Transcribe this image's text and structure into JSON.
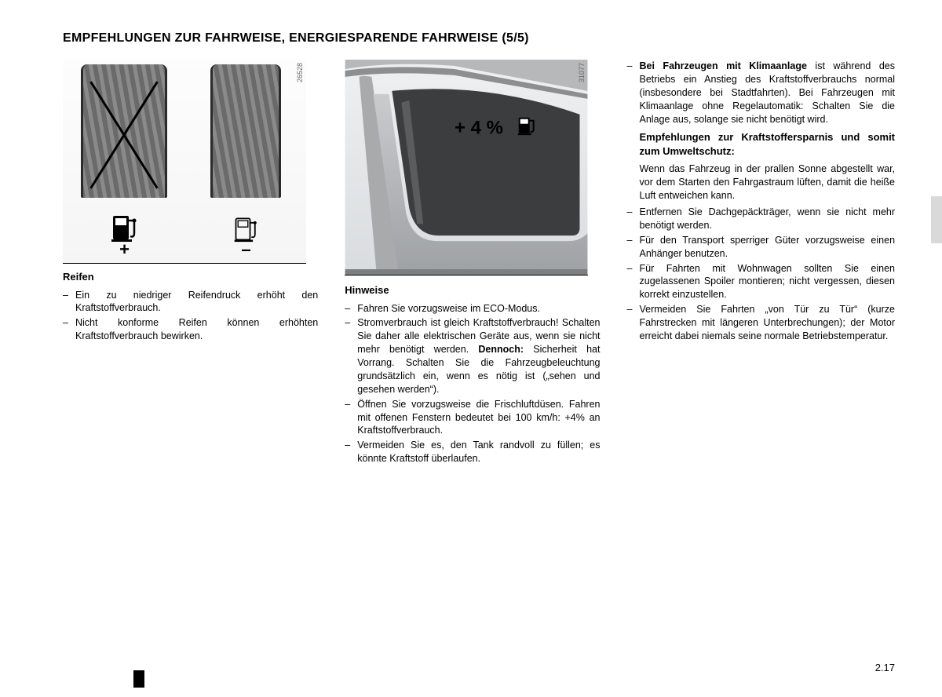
{
  "title_main": "EMPFEHLUNGEN ZUR FAHRWEISE, ENERGIESPARENDE FAHRWEISE ",
  "title_page": "(5/5)",
  "fig1": {
    "code": "26528",
    "plus": "+",
    "minus": "–"
  },
  "fig2": {
    "code": "31077",
    "overlay": "+ 4 %"
  },
  "col1": {
    "head": "Reifen",
    "items": [
      "Ein zu niedriger Reifendruck erhöht den Kraftstoffverbrauch.",
      "Nicht konforme Reifen können erhöhten Kraftstoffverbrauch bewirken."
    ]
  },
  "col2": {
    "head": "Hinweise",
    "items": [
      "Fahren Sie vorzugsweise im ECO-Modus.",
      "Stromverbrauch ist gleich Kraftstoffverbrauch! Schalten Sie daher alle elektrischen Geräte aus, wenn sie nicht mehr benötigt werden. <b>Dennoch:</b> Sicherheit hat Vorrang. Schalten Sie die Fahrzeugbeleuchtung grundsätzlich ein, wenn es nötig ist („sehen und gesehen werden“).",
      "Öffnen Sie vorzugsweise die Frischluftdüsen. Fahren mit offenen Fenstern bedeutet bei 100 km/h: +4% an Kraftstoffverbrauch.",
      "Vermeiden Sie es, den Tank randvoll zu füllen; es könnte Kraftstoff überlaufen."
    ]
  },
  "col3": {
    "intro_label": "Bei Fahrzeugen mit Klimaanlage",
    "intro_text": " ist während des Betriebs ein Anstieg des Kraftstoffverbrauchs normal (insbesondere bei Stadtfahrten). Bei Fahrzeugen mit Klimaanlage ohne Regelautomatik: Schalten Sie die Anlage aus, solange sie nicht benötigt wird.",
    "head2": "Empfehlungen zur Kraftstoffersparnis und somit zum Umweltschutz:",
    "para": "Wenn das Fahrzeug in der prallen Sonne abgestellt war, vor dem Starten den Fahrgastraum lüften, damit die heiße Luft entweichen kann.",
    "items": [
      "Entfernen Sie Dachgepäckträger, wenn sie nicht mehr benötigt werden.",
      "Für den Transport sperriger Güter vorzugsweise einen Anhänger benutzen.",
      "Für Fahrten mit Wohnwagen sollten Sie einen zugelassenen Spoiler montieren; nicht vergessen, diesen korrekt einzustellen.",
      "Vermeiden Sie Fahrten „von Tür zu Tür“ (kurze Fahrstrecken mit längeren Unterbrechungen); der Motor erreicht dabei niemals seine normale Betriebstemperatur."
    ]
  },
  "pagenum": "2.17",
  "colors": {
    "text": "#000000",
    "bg": "#ffffff",
    "tab": "#d9d9d9"
  }
}
